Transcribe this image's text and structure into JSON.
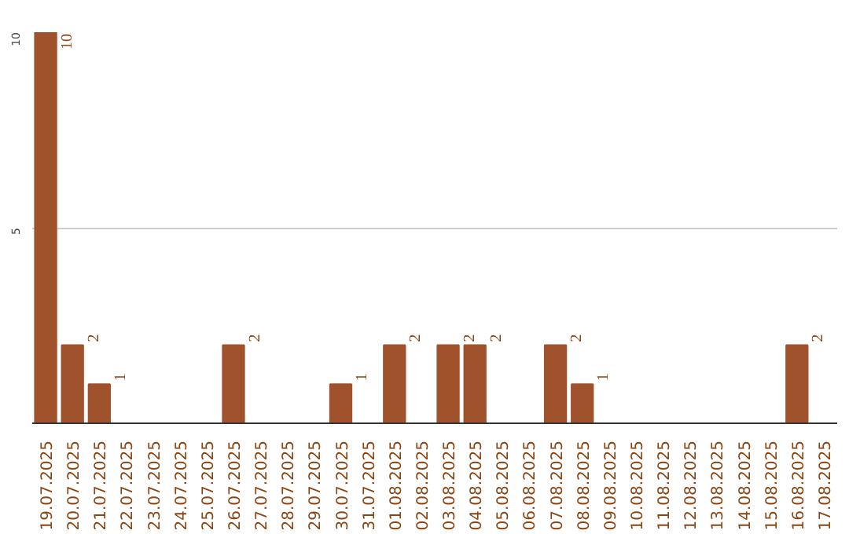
{
  "chart_data": {
    "type": "bar",
    "categories": [
      "19.07.2025",
      "20.07.2025",
      "21.07.2025",
      "22.07.2025",
      "23.07.2025",
      "24.07.2025",
      "25.07.2025",
      "26.07.2025",
      "27.07.2025",
      "28.07.2025",
      "29.07.2025",
      "30.07.2025",
      "31.07.2025",
      "01.08.2025",
      "02.08.2025",
      "03.08.2025",
      "04.08.2025",
      "05.08.2025",
      "06.08.2025",
      "07.08.2025",
      "08.08.2025",
      "09.08.2025",
      "10.08.2025",
      "11.08.2025",
      "12.08.2025",
      "13.08.2025",
      "14.08.2025",
      "15.08.2025",
      "16.08.2025",
      "17.08.2025"
    ],
    "values": [
      10,
      2,
      1,
      0,
      0,
      0,
      0,
      2,
      0,
      0,
      0,
      1,
      0,
      2,
      0,
      2,
      2,
      0,
      0,
      2,
      1,
      0,
      0,
      0,
      0,
      0,
      0,
      0,
      2,
      0
    ],
    "value_labels": [
      "10",
      "2",
      "1",
      null,
      null,
      null,
      null,
      "2",
      null,
      null,
      null,
      "1",
      null,
      "2",
      null,
      "2",
      "2",
      null,
      null,
      "2",
      "1",
      null,
      null,
      null,
      null,
      null,
      null,
      null,
      "2",
      null
    ],
    "color": "#a0522d",
    "ylim": [
      0,
      10
    ],
    "yticks": [
      5,
      10
    ],
    "grid": "y"
  }
}
